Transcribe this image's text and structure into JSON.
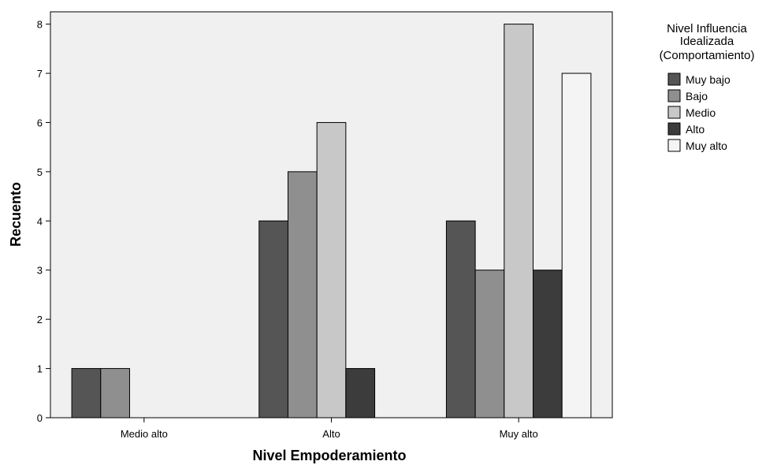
{
  "chart_data": {
    "type": "bar",
    "title": "",
    "xlabel": "Nivel Empoderamiento",
    "ylabel": "Recuento",
    "ylim": [
      0,
      8.25
    ],
    "yticks": [
      0,
      1,
      2,
      3,
      4,
      5,
      6,
      7,
      8
    ],
    "categories": [
      "Medio alto",
      "Alto",
      "Muy alto"
    ],
    "legend_title": [
      "Nivel Influencia",
      "Idealizada",
      "(Comportamiento)"
    ],
    "legend_position": "right",
    "grid": false,
    "plot_background": "#f0f0f0",
    "series": [
      {
        "name": "Muy bajo",
        "color": "#555555",
        "values": [
          1,
          4,
          4
        ]
      },
      {
        "name": "Bajo",
        "color": "#8f8f8f",
        "values": [
          1,
          5,
          3
        ]
      },
      {
        "name": "Medio",
        "color": "#c8c8c8",
        "values": [
          0,
          6,
          8
        ]
      },
      {
        "name": "Alto",
        "color": "#3c3c3c",
        "values": [
          0,
          1,
          3
        ]
      },
      {
        "name": "Muy alto",
        "color": "#f4f4f4",
        "values": [
          0,
          0,
          7
        ]
      }
    ]
  }
}
